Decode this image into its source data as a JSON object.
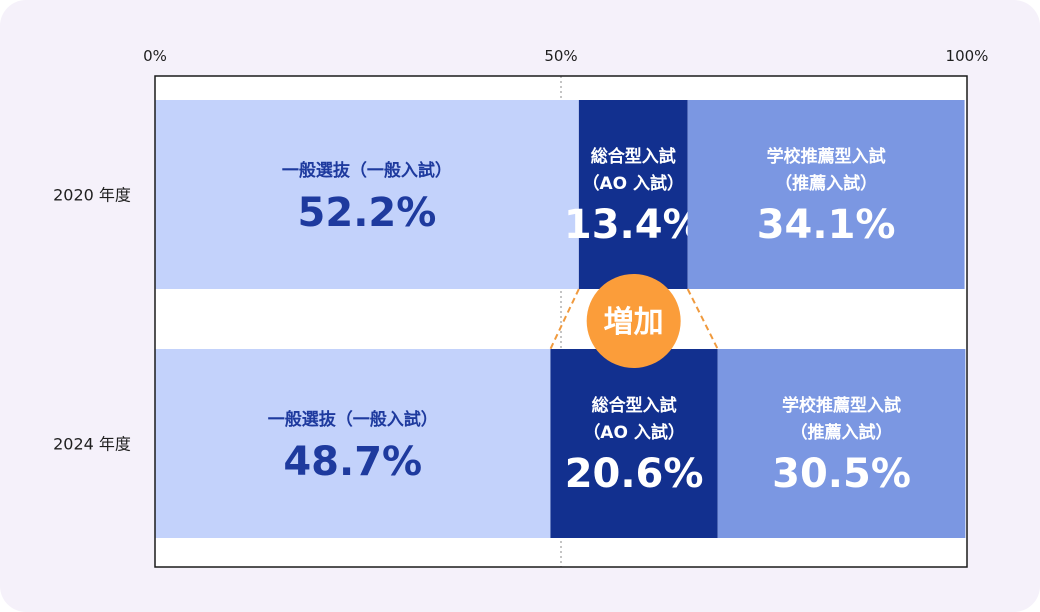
{
  "chart_data": {
    "type": "bar",
    "orientation": "horizontal",
    "stacked": true,
    "x_ticks": [
      "0%",
      "50%",
      "100%"
    ],
    "xlim": [
      0,
      100
    ],
    "categories": [
      "2020 年度",
      "2024 年度"
    ],
    "series": [
      {
        "name": "一般選抜（一般入試）",
        "name_lines": [
          "一般選抜（一般入試）"
        ],
        "values": [
          52.2,
          48.7
        ],
        "value_labels": [
          "52.2%",
          "48.7%"
        ],
        "color": "#c3d2fb",
        "text_color": "#1e3a9e"
      },
      {
        "name": "総合型入試（AO 入試）",
        "name_lines": [
          "総合型入試",
          "（AO 入試）"
        ],
        "values": [
          13.4,
          20.6
        ],
        "value_labels": [
          "13.4%",
          "20.6%"
        ],
        "color": "#12308f",
        "text_color": "#ffffff"
      },
      {
        "name": "学校推薦型入試（推薦入試）",
        "name_lines": [
          "学校推薦型入試",
          "（推薦入試）"
        ],
        "values": [
          34.1,
          30.5
        ],
        "value_labels": [
          "34.1%",
          "30.5%"
        ],
        "color": "#7b97e2",
        "text_color": "#ffffff"
      }
    ],
    "annotation": {
      "text": "増加",
      "color": "#fb9d3a",
      "line_color": "#f09a3e"
    },
    "colors": {
      "frame": "#1a1a1a",
      "plot_bg": "#ffffff",
      "gridline": "#888888"
    }
  }
}
